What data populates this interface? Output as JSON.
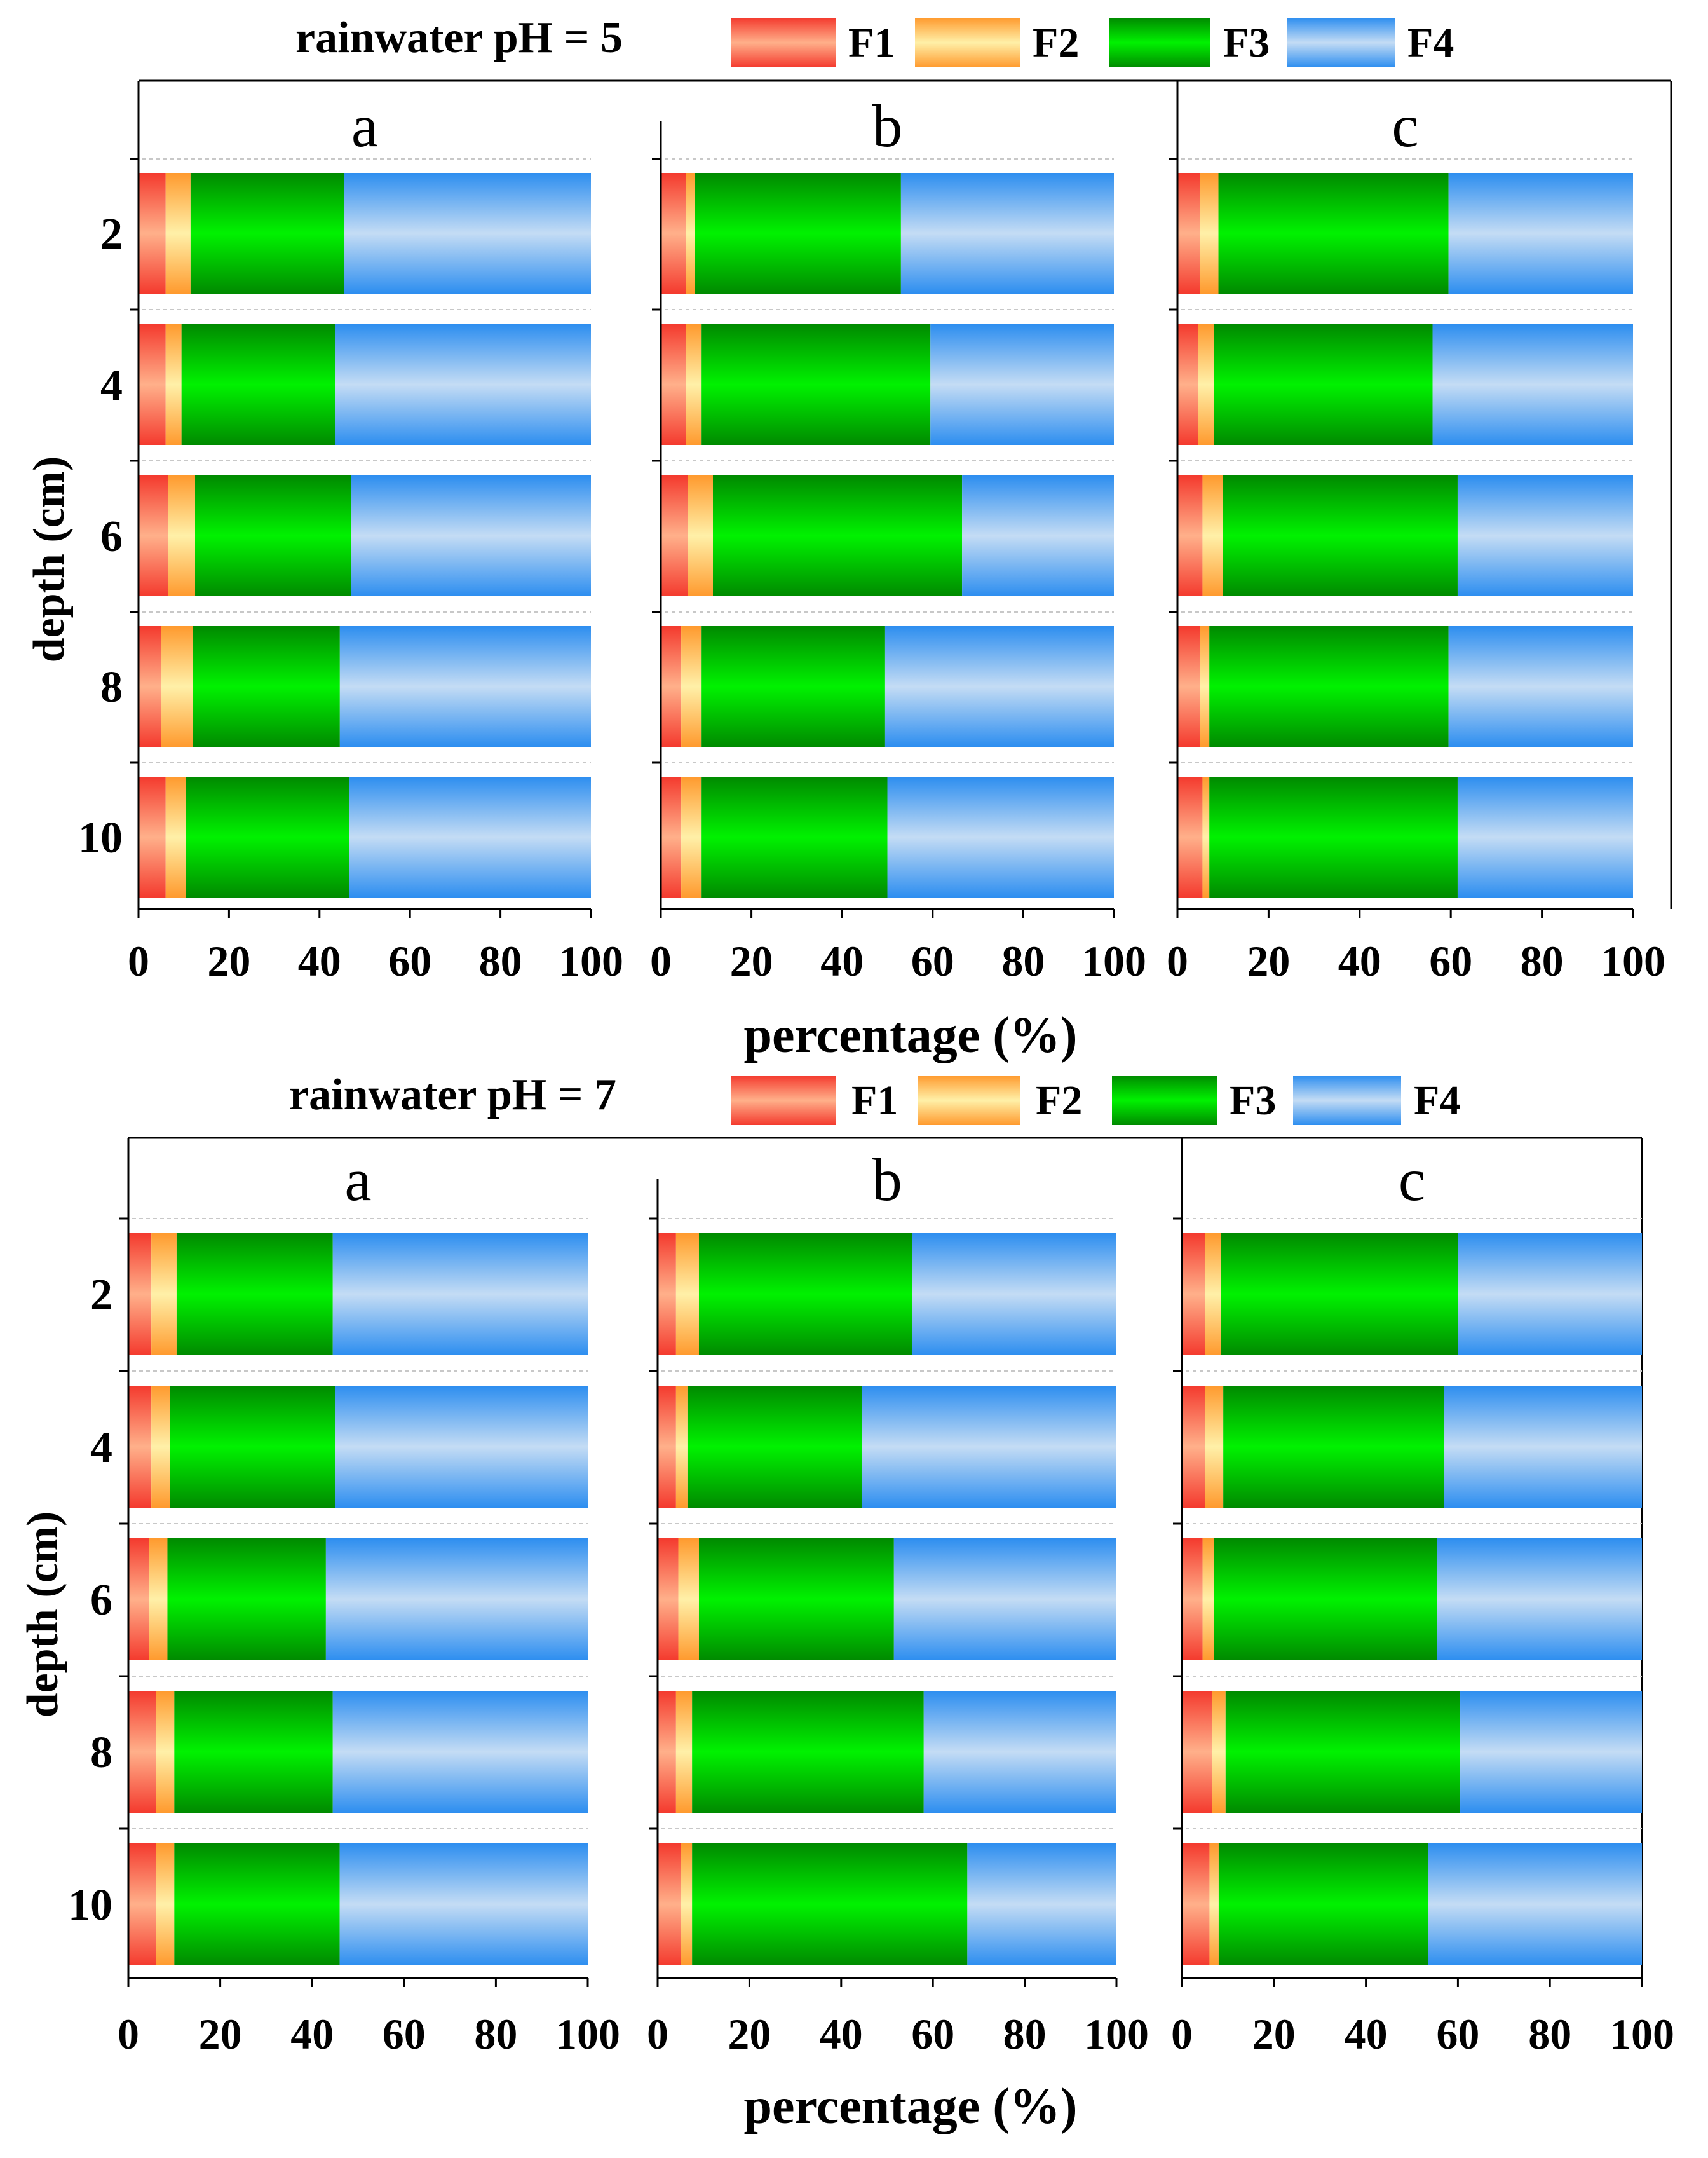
{
  "chart_data": [
    {
      "type": "bar",
      "orientation": "horizontal",
      "stacked": true,
      "title": "rainwater pH = 5",
      "xlabel": "percentage (%)",
      "ylabel": "depth (cm)",
      "xlim": [
        0,
        100
      ],
      "xticks": [
        "0",
        "20",
        "40",
        "60",
        "80",
        "100"
      ],
      "categories": [
        "2",
        "4",
        "6",
        "8",
        "10"
      ],
      "legend": [
        "F1",
        "F2",
        "F3",
        "F4"
      ],
      "panels": [
        {
          "label": "a",
          "series": [
            {
              "name": "F1",
              "values": [
                6,
                6,
                6.5,
                5,
                6
              ]
            },
            {
              "name": "F2",
              "values": [
                5.5,
                3.5,
                6,
                7,
                4.5
              ]
            },
            {
              "name": "F3",
              "values": [
                34,
                34,
                34.5,
                32.5,
                36
              ]
            },
            {
              "name": "F4",
              "values": [
                54.5,
                56.5,
                53,
                55.5,
                53.5
              ]
            }
          ]
        },
        {
          "label": "b",
          "series": [
            {
              "name": "F1",
              "values": [
                5.5,
                5.5,
                6,
                4.5,
                4.5
              ]
            },
            {
              "name": "F2",
              "values": [
                2,
                3.5,
                5.5,
                4.5,
                4.5
              ]
            },
            {
              "name": "F3",
              "values": [
                45.5,
                50.5,
                55,
                40.5,
                41
              ]
            },
            {
              "name": "F4",
              "values": [
                47,
                40.5,
                33.5,
                50.5,
                50
              ]
            }
          ]
        },
        {
          "label": "c",
          "series": [
            {
              "name": "F1",
              "values": [
                5,
                4.5,
                5.5,
                5,
                5.5
              ]
            },
            {
              "name": "F2",
              "values": [
                4,
                3.5,
                4.5,
                2,
                1.5
              ]
            },
            {
              "name": "F3",
              "values": [
                50.5,
                48,
                51.5,
                52.5,
                54.5
              ]
            },
            {
              "name": "F4",
              "values": [
                40.5,
                44,
                38.5,
                40.5,
                38.5
              ]
            }
          ]
        }
      ]
    },
    {
      "type": "bar",
      "orientation": "horizontal",
      "stacked": true,
      "title": "rainwater pH = 7",
      "xlabel": "percentage (%)",
      "ylabel": "depth (cm)",
      "xlim": [
        0,
        100
      ],
      "xticks": [
        "0",
        "20",
        "40",
        "60",
        "80",
        "100"
      ],
      "categories": [
        "2",
        "4",
        "6",
        "8",
        "10"
      ],
      "legend": [
        "F1",
        "F2",
        "F3",
        "F4"
      ],
      "panels": [
        {
          "label": "a",
          "series": [
            {
              "name": "F1",
              "values": [
                5,
                5,
                4.5,
                6,
                6
              ]
            },
            {
              "name": "F2",
              "values": [
                5.5,
                4,
                4,
                4,
                4
              ]
            },
            {
              "name": "F3",
              "values": [
                34,
                36,
                34.5,
                34.5,
                36
              ]
            },
            {
              "name": "F4",
              "values": [
                55.5,
                55,
                57,
                55.5,
                54
              ]
            }
          ]
        },
        {
          "label": "b",
          "series": [
            {
              "name": "F1",
              "values": [
                4,
                4,
                4.5,
                4,
                5
              ]
            },
            {
              "name": "F2",
              "values": [
                5,
                2.5,
                4.5,
                3.5,
                2.5
              ]
            },
            {
              "name": "F3",
              "values": [
                46.5,
                38,
                42.5,
                50.5,
                60
              ]
            },
            {
              "name": "F4",
              "values": [
                44.5,
                55.5,
                48.5,
                42,
                32.5
              ]
            }
          ]
        },
        {
          "label": "c",
          "series": [
            {
              "name": "F1",
              "values": [
                5,
                5,
                4.5,
                6.5,
                6
              ]
            },
            {
              "name": "F2",
              "values": [
                3.5,
                4,
                2.5,
                3,
                2
              ]
            },
            {
              "name": "F3",
              "values": [
                51.5,
                48,
                48.5,
                51,
                45.5
              ]
            },
            {
              "name": "F4",
              "values": [
                40,
                43,
                44.5,
                39.5,
                46.5
              ]
            }
          ]
        }
      ]
    }
  ],
  "colors": {
    "F1": [
      "#f43a2e",
      "#ffb08a"
    ],
    "F2": [
      "#ff9a2e",
      "#fff0a8"
    ],
    "F3": [
      "#008a00",
      "#00f200"
    ],
    "F4": [
      "#2d8ef0",
      "#c4dcf4"
    ]
  }
}
